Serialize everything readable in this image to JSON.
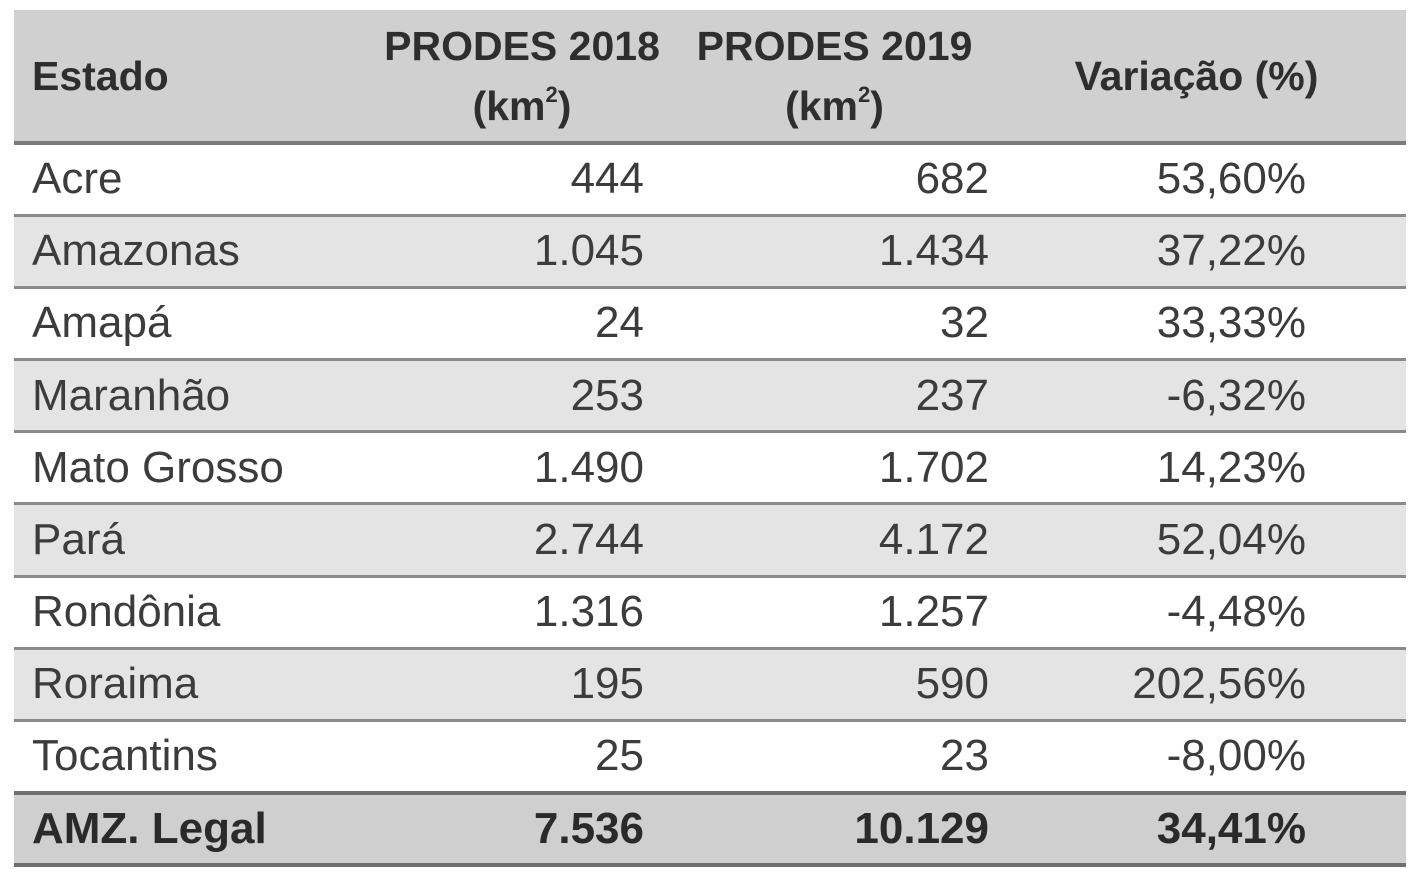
{
  "table": {
    "headers": {
      "estado": "Estado",
      "prodes2018": "PRODES 2018",
      "prodes2019": "PRODES 2019",
      "unit_prefix": "(km",
      "unit_sup": "2",
      "unit_suffix": ")",
      "variacao": "Variação (%)"
    },
    "rows": [
      {
        "estado": "Acre",
        "v2018": "444",
        "v2019": "682",
        "var": "53,60%"
      },
      {
        "estado": "Amazonas",
        "v2018": "1.045",
        "v2019": "1.434",
        "var": "37,22%"
      },
      {
        "estado": "Amapá",
        "v2018": "24",
        "v2019": "32",
        "var": "33,33%"
      },
      {
        "estado": "Maranhão",
        "v2018": "253",
        "v2019": "237",
        "var": "-6,32%"
      },
      {
        "estado": "Mato Grosso",
        "v2018": "1.490",
        "v2019": "1.702",
        "var": "14,23%"
      },
      {
        "estado": "Pará",
        "v2018": "2.744",
        "v2019": "4.172",
        "var": "52,04%"
      },
      {
        "estado": "Rondônia",
        "v2018": "1.316",
        "v2019": "1.257",
        "var": "-4,48%"
      },
      {
        "estado": "Roraima",
        "v2018": "195",
        "v2019": "590",
        "var": "202,56%"
      },
      {
        "estado": "Tocantins",
        "v2018": "25",
        "v2019": "23",
        "var": "-8,00%"
      }
    ],
    "total": {
      "estado": "AMZ. Legal",
      "v2018": "7.536",
      "v2019": "10.129",
      "var": "34,41%"
    }
  }
}
